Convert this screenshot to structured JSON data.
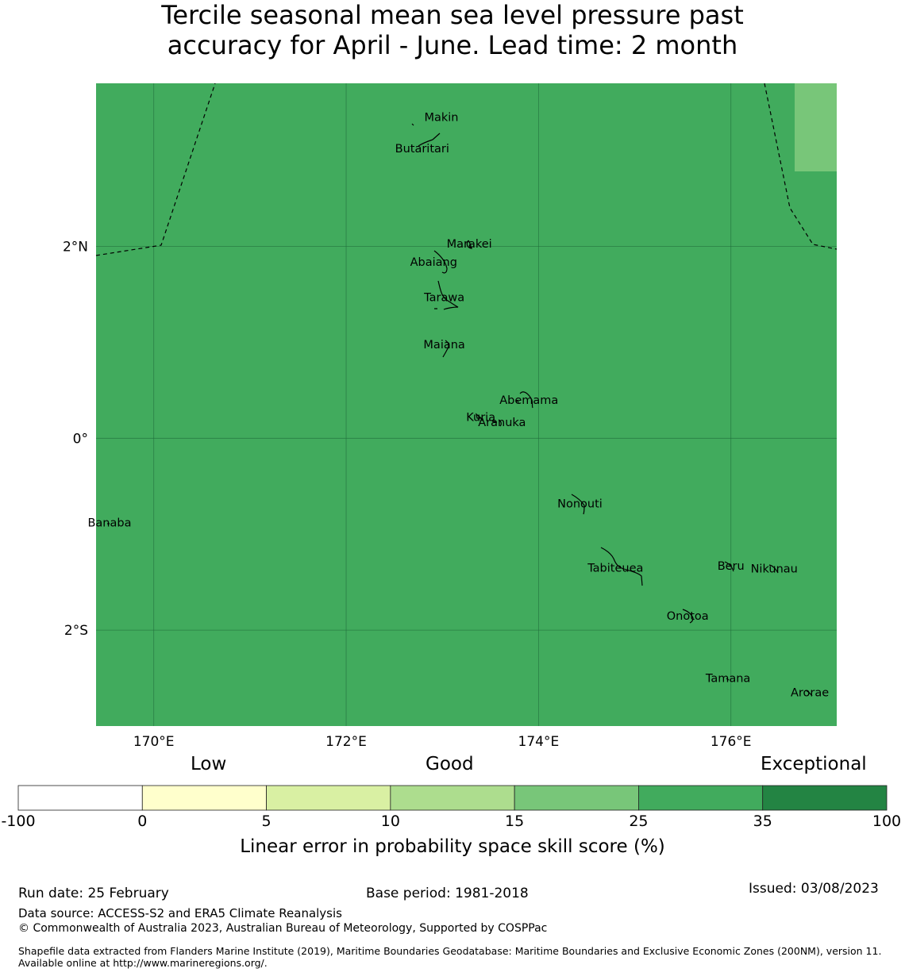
{
  "title": {
    "line1": "Tercile seasonal mean sea level pressure past",
    "line2": "accuracy for April - June. Lead time: 2 month"
  },
  "map": {
    "lon_range": [
      169.4,
      177.1
    ],
    "lat_range": [
      -3.0,
      3.7
    ],
    "fill_color": "#41ab5d",
    "patch_color": "#78c679",
    "grid_color": "#1f6b3a",
    "x_ticks": [
      {
        "lon": 170,
        "label": "170°E"
      },
      {
        "lon": 172,
        "label": "172°E"
      },
      {
        "lon": 174,
        "label": "174°E"
      },
      {
        "lon": 176,
        "label": "176°E"
      }
    ],
    "y_ticks": [
      {
        "lat": 2,
        "label": "2°N"
      },
      {
        "lat": 0,
        "label": "0°"
      },
      {
        "lat": -2,
        "label": "2°S"
      }
    ],
    "islands": [
      {
        "name": "Makin",
        "lon": 172.99,
        "lat": 3.35
      },
      {
        "name": "Butaritari",
        "lon": 172.79,
        "lat": 3.02
      },
      {
        "name": "Marakei",
        "lon": 173.28,
        "lat": 2.03
      },
      {
        "name": "Abaiang",
        "lon": 172.91,
        "lat": 1.84
      },
      {
        "name": "Tarawa",
        "lon": 173.02,
        "lat": 1.47
      },
      {
        "name": "Maiana",
        "lon": 173.02,
        "lat": 0.98
      },
      {
        "name": "Abemama",
        "lon": 173.9,
        "lat": 0.4
      },
      {
        "name": "Kuria",
        "lon": 173.4,
        "lat": 0.22
      },
      {
        "name": "Aranuka",
        "lon": 173.62,
        "lat": 0.17
      },
      {
        "name": "Banaba",
        "lon": 169.54,
        "lat": -0.88
      },
      {
        "name": "Nonouti",
        "lon": 174.43,
        "lat": -0.68
      },
      {
        "name": "Tabiteuea",
        "lon": 174.8,
        "lat": -1.35
      },
      {
        "name": "Beru",
        "lon": 176.0,
        "lat": -1.33
      },
      {
        "name": "Nikunau",
        "lon": 176.45,
        "lat": -1.36
      },
      {
        "name": "Onotoa",
        "lon": 175.55,
        "lat": -1.85
      },
      {
        "name": "Tamana",
        "lon": 175.97,
        "lat": -2.5
      },
      {
        "name": "Arorae",
        "lon": 176.82,
        "lat": -2.65
      }
    ]
  },
  "legend": {
    "categories": [
      "Low",
      "Good",
      "Exceptional"
    ],
    "bins": [
      {
        "from": "-100",
        "color": "#ffffff"
      },
      {
        "from": "0",
        "color": "#ffffcc"
      },
      {
        "from": "5",
        "color": "#d9f0a3"
      },
      {
        "from": "10",
        "color": "#addd8e"
      },
      {
        "from": "15",
        "color": "#78c679"
      },
      {
        "from": "25",
        "color": "#41ab5d"
      },
      {
        "from": "35",
        "color": "#238443"
      }
    ],
    "ticks": [
      "-100",
      "0",
      "5",
      "10",
      "15",
      "25",
      "35",
      "100"
    ],
    "label": "Linear error in probability space skill score (%)"
  },
  "footer": {
    "run_date": "Run date: 25 February",
    "base_period": "Base period: 1981-2018",
    "issued": "Issued: 03/08/2023",
    "data_source": "Data source: ACCESS-S2 and ERA5 Climate Reanalysis",
    "copyright": "© Commonwealth of Australia 2023, Australian Bureau of Meteorology, Supported by COSPPac",
    "shapefile": "Shapefile data extracted from Flanders Marine Institute (2019), Maritime Boundaries Geodatabase: Maritime Boundaries and Exclusive Economic Zones (200NM), version 11. Available online at http://www.marineregions.org/."
  }
}
